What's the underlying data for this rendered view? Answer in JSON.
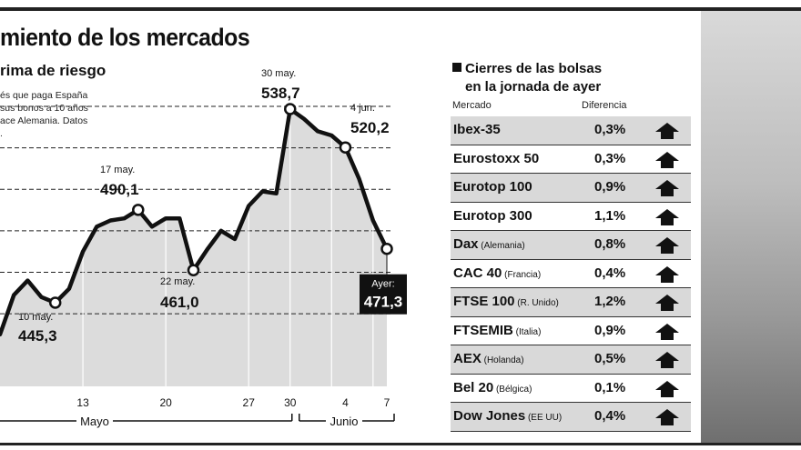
{
  "title": "miento de los mercados",
  "subtitle": "rima de riesgo",
  "description_lines": [
    "és que paga España",
    "sus bonos a 10 años",
    "ace Alemania. Datos",
    "."
  ],
  "chart_data": {
    "type": "area",
    "ylim": [
      420,
      560
    ],
    "gridlines": [
      440,
      460,
      480,
      500,
      520,
      540
    ],
    "x": [
      "May 6",
      "May 7",
      "May 8",
      "May 9",
      "May 10",
      "May 11",
      "May 13",
      "May 14",
      "May 15",
      "May 16",
      "May 17",
      "May 18",
      "May 20",
      "May 21",
      "May 22",
      "May 23",
      "May 24",
      "May 25",
      "May 27",
      "May 28",
      "May 29",
      "May 30",
      "May 31",
      "Jun 1",
      "Jun 3",
      "Jun 4",
      "Jun 5",
      "Jun 6",
      "Jun 7"
    ],
    "values": [
      430,
      449,
      456,
      448,
      445.3,
      452,
      470,
      482,
      485,
      486,
      490.1,
      482,
      486,
      486,
      461,
      471,
      480,
      476,
      492,
      499,
      498,
      538.7,
      534,
      528,
      526,
      520.2,
      505,
      485,
      471.3
    ],
    "annotations": [
      {
        "date": "10 may.",
        "value": "445,3"
      },
      {
        "date": "17 may.",
        "value": "490,1"
      },
      {
        "date": "22 may.",
        "value": "461,0"
      },
      {
        "date": "30 may.",
        "value": "538,7"
      },
      {
        "date": "4 jun.",
        "value": "520,2"
      },
      {
        "date": "Ayer:",
        "value": "471,3"
      }
    ],
    "x_ticks": [
      "13",
      "20",
      "27",
      "30",
      "4",
      "7"
    ],
    "months": [
      "Mayo",
      "Junio"
    ]
  },
  "table": {
    "heading_line1": "Cierres de las bolsas",
    "heading_line2": "en la jornada de ayer",
    "col_market": "Mercado",
    "col_diff": "Diferencia",
    "rows": [
      {
        "name": "Ibex-35",
        "note": "",
        "diff": "0,3%"
      },
      {
        "name": "Eurostoxx 50",
        "note": "",
        "diff": "0,3%"
      },
      {
        "name": "Eurotop 100",
        "note": "",
        "diff": "0,9%"
      },
      {
        "name": "Eurotop 300",
        "note": "",
        "diff": "1,1%"
      },
      {
        "name": "Dax",
        "note": "(Alemania)",
        "diff": "0,8%"
      },
      {
        "name": "CAC 40",
        "note": "(Francia)",
        "diff": "0,4%"
      },
      {
        "name": "FTSE 100",
        "note": "(R. Unido)",
        "diff": "1,2%"
      },
      {
        "name": "FTSEMIB",
        "note": "(Italia)",
        "diff": "0,9%"
      },
      {
        "name": "AEX",
        "note": "(Holanda)",
        "diff": "0,5%"
      },
      {
        "name": "Bel 20",
        "note": "(Bélgica)",
        "diff": "0,1%"
      },
      {
        "name": "Dow Jones",
        "note": "(EE UU)",
        "diff": "0,4%"
      }
    ]
  },
  "arrow_icon": "up-arrow-icon"
}
